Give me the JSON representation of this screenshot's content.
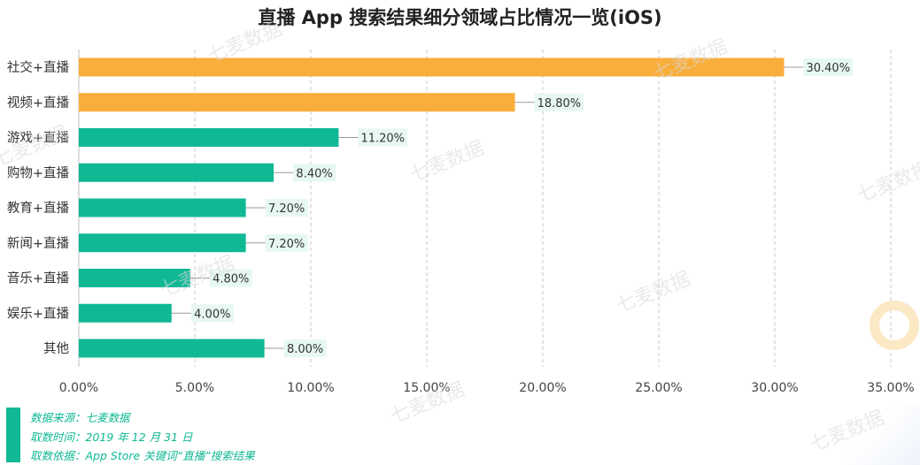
{
  "title": "直播 App 搜索结果细分领域占比情况一览(iOS)",
  "watermark": "七麦数据",
  "colors": {
    "orange": "#f9ae3c",
    "green": "#10b894",
    "label_bg": "#e6f8f1"
  },
  "chart_data": {
    "type": "bar",
    "orientation": "horizontal",
    "title": "直播 App 搜索结果细分领域占比情况一览(iOS)",
    "categories": [
      "社交+直播",
      "视频+直播",
      "游戏+直播",
      "购物+直播",
      "教育+直播",
      "新闻+直播",
      "音乐+直播",
      "娱乐+直播",
      "其他"
    ],
    "values": [
      30.4,
      18.8,
      11.2,
      8.4,
      7.2,
      7.2,
      4.8,
      4.0,
      8.0
    ],
    "data_labels": [
      "30.40%",
      "18.80%",
      "11.20%",
      "8.40%",
      "7.20%",
      "7.20%",
      "4.80%",
      "4.00%",
      "8.00%"
    ],
    "bar_colors": [
      "#f9ae3c",
      "#f9ae3c",
      "#10b894",
      "#10b894",
      "#10b894",
      "#10b894",
      "#10b894",
      "#10b894",
      "#10b894"
    ],
    "xlim": [
      0,
      35
    ],
    "xticks": [
      "0.00%",
      "5.00%",
      "10.00%",
      "15.00%",
      "20.00%",
      "25.00%",
      "30.00%",
      "35.00%"
    ],
    "grid": true,
    "xlabel": "",
    "ylabel": ""
  },
  "footer": {
    "source": "数据来源：七麦数据",
    "time": "取数时间：2019 年 12 月 31 日",
    "basis": "取数依据：App Store 关键词“直播”搜索结果"
  }
}
